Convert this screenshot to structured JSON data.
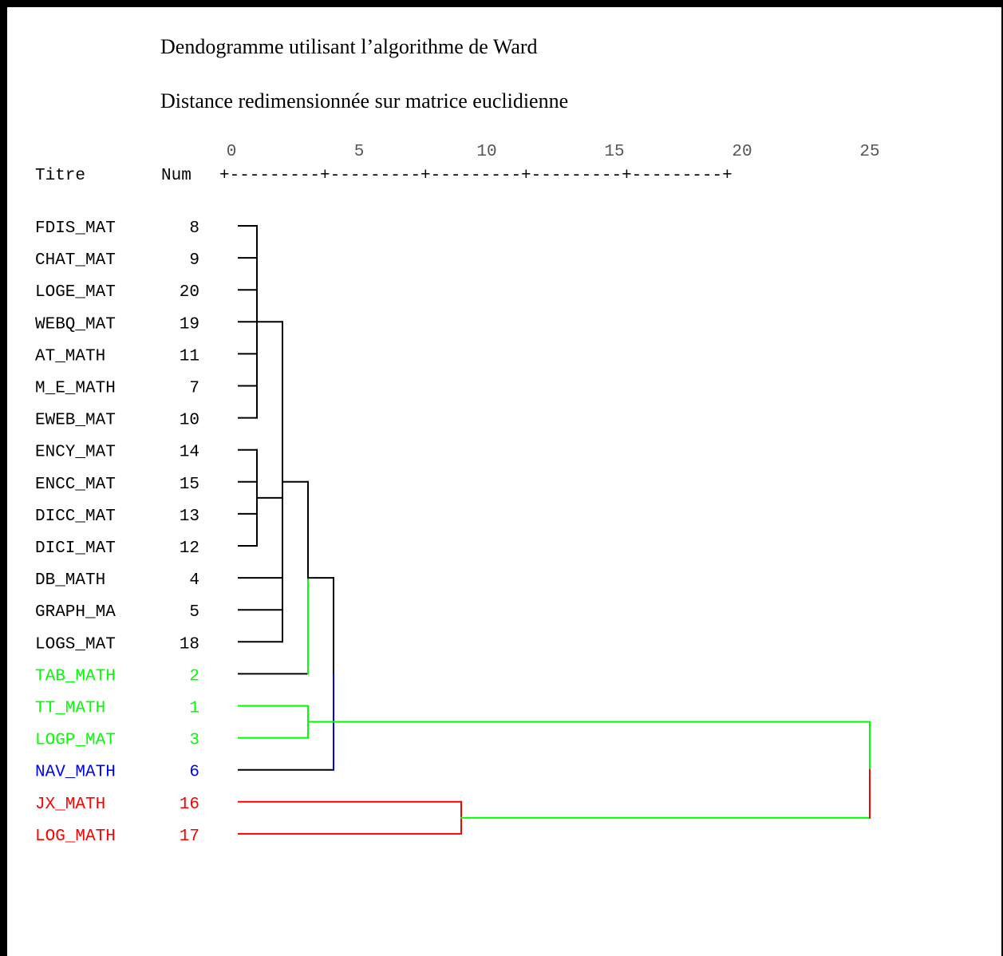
{
  "chart_data": {
    "type": "dendrogram",
    "title": "Dendogramme utilisant l’algorithme de Ward",
    "subtitle": "Distance redimensionnée sur matrice euclidienne",
    "header": {
      "label_col": "Titre",
      "num_col": "Num"
    },
    "scale": {
      "ticks": [
        0,
        5,
        10,
        15,
        20,
        25
      ],
      "tick_labels": [
        "0",
        "5",
        "10",
        "15",
        "20",
        "25"
      ],
      "ruler": "+---------+---------+---------+---------+---------+",
      "range": [
        0,
        25
      ]
    },
    "colors": {
      "black": "#000000",
      "green": "#00ff00",
      "blue": "#0000ff",
      "red": "#ff0000"
    },
    "leaves": [
      {
        "title": "FDIS_MAT",
        "num": "8",
        "color": "#000000"
      },
      {
        "title": "CHAT_MAT",
        "num": "9",
        "color": "#000000"
      },
      {
        "title": "LOGE_MAT",
        "num": "20",
        "color": "#000000"
      },
      {
        "title": "WEBQ_MAT",
        "num": "19",
        "color": "#000000"
      },
      {
        "title": "AT_MATH",
        "num": "11",
        "color": "#000000"
      },
      {
        "title": "M_E_MATH",
        "num": "7",
        "color": "#000000"
      },
      {
        "title": "EWEB_MAT",
        "num": "10",
        "color": "#000000"
      },
      {
        "title": "ENCY_MAT",
        "num": "14",
        "color": "#000000"
      },
      {
        "title": "ENCC_MAT",
        "num": "15",
        "color": "#000000"
      },
      {
        "title": "DICC_MAT",
        "num": "13",
        "color": "#000000"
      },
      {
        "title": "DICI_MAT",
        "num": "12",
        "color": "#000000"
      },
      {
        "title": "DB_MATH",
        "num": "4",
        "color": "#000000"
      },
      {
        "title": "GRAPH_MA",
        "num": "5",
        "color": "#000000"
      },
      {
        "title": "LOGS_MAT",
        "num": "18",
        "color": "#000000"
      },
      {
        "title": "TAB_MATH",
        "num": "2",
        "color": "#00ff00"
      },
      {
        "title": "TT_MATH",
        "num": "1",
        "color": "#00ff00"
      },
      {
        "title": "LOGP_MAT",
        "num": "3",
        "color": "#00ff00"
      },
      {
        "title": "NAV_MATH",
        "num": "6",
        "color": "#0000ff"
      },
      {
        "title": "JX_MATH",
        "num": "16",
        "color": "#ff0000"
      },
      {
        "title": "LOG_MATH",
        "num": "17",
        "color": "#ff0000"
      }
    ],
    "merges": [
      {
        "id": "A",
        "children": [
          "L0",
          "L1",
          "L2",
          "L3",
          "L4",
          "L5",
          "L6"
        ],
        "height": 1.0,
        "color": "#000000"
      },
      {
        "id": "B",
        "children": [
          "L7",
          "L8",
          "L9",
          "L10"
        ],
        "height": 1.0,
        "color": "#000000"
      },
      {
        "id": "C",
        "children": [
          "A",
          "B",
          "L11",
          "L12",
          "L13"
        ],
        "height": 2.0,
        "color": "#000000"
      },
      {
        "id": "D",
        "children": [
          "C",
          "L14"
        ],
        "height": 3.0,
        "color": "#000000",
        "down_color": "#00ff00"
      },
      {
        "id": "E",
        "children": [
          "L15",
          "L16"
        ],
        "height": 3.0,
        "color": "#00ff00"
      },
      {
        "id": "F",
        "children": [
          "D",
          "L17"
        ],
        "height": 4.0,
        "color": "#000000",
        "down_color": "#0000ff"
      },
      {
        "id": "G",
        "children": [
          "L18",
          "L19"
        ],
        "height": 9.0,
        "color": "#ff0000"
      },
      {
        "id": "H",
        "children": [
          "E",
          "G"
        ],
        "height": 25.0,
        "color": "#00ff00",
        "down_color": "#ff0000"
      }
    ]
  }
}
